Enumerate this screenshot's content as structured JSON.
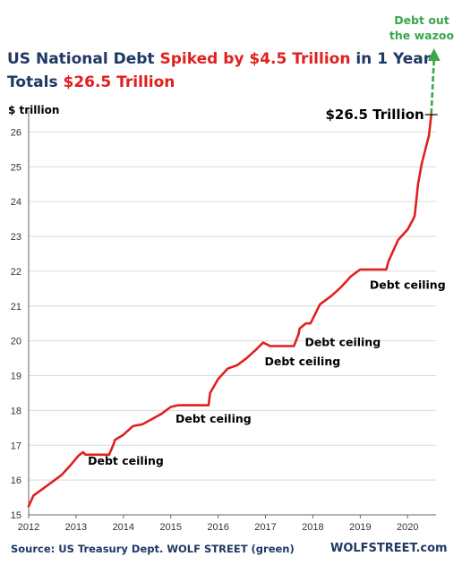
{
  "title": {
    "line1": [
      {
        "text": "US National Debt ",
        "color": "navy"
      },
      {
        "text": "Spiked by $4.5 Trillion",
        "color": "red"
      },
      {
        "text": " in 1 Year",
        "color": "navy"
      }
    ],
    "line2": [
      {
        "text": "Totals ",
        "color": "navy"
      },
      {
        "text": "$26.5 Trillion",
        "color": "red"
      }
    ]
  },
  "footer": {
    "source": "Source: US Treasury Dept. WOLF STREET (green)",
    "brand": "WOLFSTREET.com"
  },
  "colors": {
    "navy": "#1f3864",
    "red": "#e0201e",
    "green": "#3aa64c",
    "grid": "#d9d9d9"
  },
  "chart_data": {
    "type": "line",
    "ylabel": "$ trillion",
    "xlim": [
      2012,
      2020.6
    ],
    "ylim": [
      15,
      26.5
    ],
    "x_ticks": [
      2012,
      2013,
      2014,
      2015,
      2016,
      2017,
      2018,
      2019,
      2020
    ],
    "y_ticks": [
      15,
      16,
      17,
      18,
      19,
      20,
      21,
      22,
      23,
      24,
      25,
      26
    ],
    "grid": "horizontal",
    "series": [
      {
        "color": "#e0201e",
        "x": [
          2012.0,
          2012.1,
          2012.3,
          2012.5,
          2012.7,
          2012.9,
          2013.05,
          2013.15,
          2013.2,
          2013.7,
          2013.8,
          2013.82,
          2014.0,
          2014.2,
          2014.4,
          2014.6,
          2014.8,
          2015.0,
          2015.15,
          2015.8,
          2015.83,
          2016.0,
          2016.2,
          2016.4,
          2016.6,
          2016.8,
          2016.95,
          2017.1,
          2017.6,
          2017.7,
          2017.72,
          2017.85,
          2017.95,
          2018.15,
          2018.2,
          2018.4,
          2018.6,
          2018.8,
          2019.0,
          2019.05,
          2019.55,
          2019.6,
          2019.8,
          2020.0,
          2020.12,
          2020.15,
          2020.22,
          2020.3,
          2020.45,
          2020.5
        ],
        "y": [
          15.25,
          15.55,
          15.75,
          15.95,
          16.15,
          16.45,
          16.7,
          16.8,
          16.73,
          16.73,
          17.05,
          17.15,
          17.3,
          17.55,
          17.6,
          17.75,
          17.9,
          18.1,
          18.15,
          18.15,
          18.5,
          18.9,
          19.2,
          19.3,
          19.5,
          19.75,
          19.95,
          19.85,
          19.85,
          20.2,
          20.35,
          20.5,
          20.5,
          21.05,
          21.1,
          21.3,
          21.55,
          21.85,
          22.05,
          22.05,
          22.05,
          22.3,
          22.9,
          23.2,
          23.5,
          23.6,
          24.5,
          25.1,
          25.9,
          26.5
        ]
      }
    ],
    "annotations": [
      {
        "text": "Debt ceiling",
        "x": 2013.25,
        "y": 16.55
      },
      {
        "text": "Debt ceiling",
        "x": 2015.1,
        "y": 17.75
      },
      {
        "text": "Debt ceiling",
        "x": 2016.98,
        "y": 19.4
      },
      {
        "text": "Debt ceiling",
        "x": 2017.83,
        "y": 19.95
      },
      {
        "text": "Debt ceiling",
        "x": 2019.2,
        "y": 21.6
      }
    ],
    "end_label": {
      "text": "$26.5 Trillion",
      "x": 2020.5,
      "y": 26.5
    },
    "arrow": {
      "label": "Debt out the wazoo",
      "color": "#3aa64c"
    }
  }
}
